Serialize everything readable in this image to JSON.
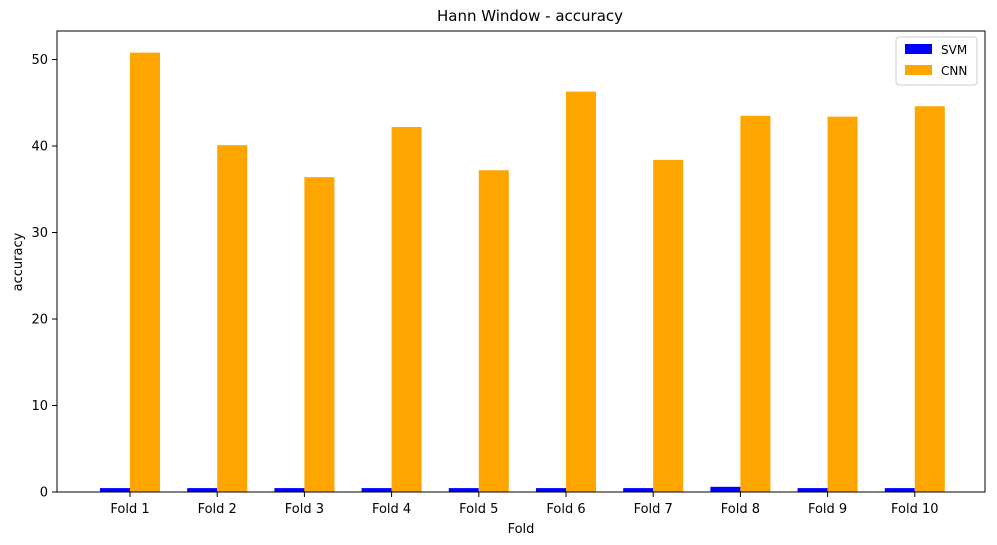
{
  "chart_data": {
    "type": "bar",
    "title": "Hann Window - accuracy",
    "xlabel": "Fold",
    "ylabel": "accuracy",
    "categories": [
      "Fold 1",
      "Fold 2",
      "Fold 3",
      "Fold 4",
      "Fold 5",
      "Fold 6",
      "Fold 7",
      "Fold 8",
      "Fold 9",
      "Fold 10"
    ],
    "series": [
      {
        "name": "SVM",
        "color": "#0000ff",
        "values": [
          0.45,
          0.45,
          0.45,
          0.45,
          0.45,
          0.45,
          0.45,
          0.6,
          0.45,
          0.45
        ]
      },
      {
        "name": "CNN",
        "color": "#ffa500",
        "values": [
          50.8,
          40.1,
          36.4,
          42.2,
          37.2,
          46.3,
          38.4,
          43.5,
          43.4,
          44.6
        ]
      }
    ],
    "ylim": [
      0,
      53.3
    ],
    "yticks": [
      0,
      10,
      20,
      30,
      40,
      50
    ],
    "grid": false,
    "legend_position": "top-right"
  }
}
